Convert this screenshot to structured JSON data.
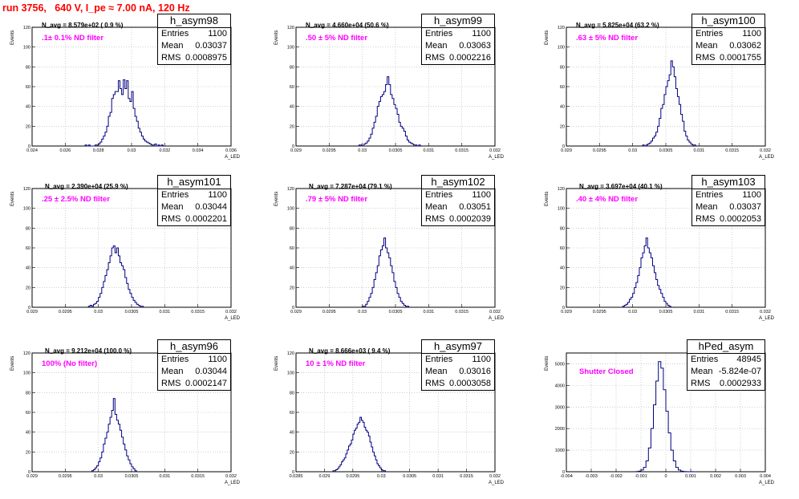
{
  "title": "run 3756,   640 V, I_pe ≈ 7.00 nA, 120 Hz",
  "chart_data": [
    {
      "type": "histogram",
      "name": "h_asym98",
      "navg": "N_avg = 8.579e+02 ( 0.9 %)",
      "filter": ".1± 0.1% ND filter",
      "entries": "1100",
      "mean": "0.03037",
      "rms": "0.0008975",
      "xlim": [
        0.024,
        0.036
      ],
      "xticks": [
        "0.024",
        "0.026",
        "0.028",
        "0.03",
        "0.032",
        "0.034",
        "0.036"
      ],
      "ylim": [
        0,
        120
      ],
      "yticks": [
        "0",
        "20",
        "40",
        "60",
        "80",
        "100",
        "120"
      ],
      "xlabel": "A_LED",
      "ylabel": "Events",
      "bin_lo": 0.0272,
      "bin_w": 0.0001,
      "values": [
        1,
        0,
        1,
        0,
        0,
        0,
        1,
        1,
        2,
        4,
        7,
        10,
        14,
        20,
        30,
        34,
        48,
        52,
        55,
        55,
        66,
        58,
        52,
        67,
        58,
        66,
        48,
        45,
        55,
        38,
        30,
        25,
        18,
        14,
        10,
        7,
        5,
        4,
        3,
        2,
        1,
        1,
        2,
        0,
        1,
        0,
        1
      ]
    },
    {
      "type": "histogram",
      "name": "h_asym99",
      "navg": "N_avg = 4.660e+04 (50.6 %)",
      "filter": ".50 ± 5% ND filter",
      "entries": "1100",
      "mean": "0.03063",
      "rms": "0.0002216",
      "xlim": [
        0.029,
        0.032
      ],
      "xticks": [
        "0.029",
        "0.0295",
        "0.03",
        "0.0305",
        "0.031",
        "0.0315",
        "0.032"
      ],
      "ylim": [
        0,
        120
      ],
      "yticks": [
        "0",
        "20",
        "40",
        "60",
        "80",
        "100",
        "120"
      ],
      "xlabel": "A_LED",
      "ylabel": "Events",
      "bin_lo": 0.02995,
      "bin_w": 2.5e-05,
      "values": [
        1,
        1,
        0,
        2,
        3,
        5,
        8,
        12,
        18,
        24,
        30,
        40,
        45,
        50,
        52,
        55,
        62,
        70,
        62,
        52,
        48,
        42,
        38,
        32,
        24,
        20,
        18,
        15,
        10,
        6,
        4,
        3,
        2,
        1,
        1,
        0,
        1
      ]
    },
    {
      "type": "histogram",
      "name": "h_asym100",
      "navg": "N_avg = 5.825e+04 (63.2 %)",
      "filter": ".63 ± 5% ND filter",
      "entries": "1100",
      "mean": "0.03062",
      "rms": "0.0001755",
      "xlim": [
        0.029,
        0.032
      ],
      "xticks": [
        "0.029",
        "0.0295",
        "0.03",
        "0.0305",
        "0.031",
        "0.0315",
        "0.032"
      ],
      "ylim": [
        0,
        120
      ],
      "yticks": [
        "0",
        "20",
        "40",
        "60",
        "80",
        "100",
        "120"
      ],
      "xlabel": "A_LED",
      "ylabel": "Events",
      "bin_lo": 0.03015,
      "bin_w": 2.5e-05,
      "values": [
        1,
        0,
        1,
        2,
        3,
        5,
        8,
        10,
        14,
        20,
        28,
        38,
        42,
        52,
        60,
        66,
        72,
        86,
        80,
        70,
        58,
        50,
        42,
        32,
        25,
        15,
        10,
        6,
        4,
        2,
        1,
        1
      ]
    },
    {
      "type": "histogram",
      "name": "h_asym101",
      "navg": "N_avg = 2.390e+04 (25.9 %)",
      "filter": ".25 ± 2.5% ND filter",
      "entries": "1100",
      "mean": "0.03044",
      "rms": "0.0002201",
      "xlim": [
        0.029,
        0.032
      ],
      "xticks": [
        "0.029",
        "0.0295",
        "0.03",
        "0.0305",
        "0.031",
        "0.0315",
        "0.032"
      ],
      "ylim": [
        0,
        120
      ],
      "yticks": [
        "0",
        "20",
        "40",
        "60",
        "80",
        "100",
        "120"
      ],
      "xlabel": "A_LED",
      "ylabel": "Events",
      "bin_lo": 0.02985,
      "bin_w": 2.5e-05,
      "values": [
        1,
        2,
        1,
        3,
        4,
        6,
        10,
        14,
        20,
        26,
        32,
        38,
        45,
        52,
        60,
        62,
        55,
        60,
        52,
        45,
        42,
        38,
        30,
        24,
        18,
        14,
        10,
        7,
        5,
        3,
        2,
        1,
        1
      ]
    },
    {
      "type": "histogram",
      "name": "h_asym102",
      "navg": "N_avg = 7.287e+04 (79.1 %)",
      "filter": ".79 ± 5% ND filter",
      "entries": "1100",
      "mean": "0.03051",
      "rms": "0.0002039",
      "xlim": [
        0.029,
        0.032
      ],
      "xticks": [
        "0.029",
        "0.0295",
        "0.03",
        "0.0305",
        "0.031",
        "0.0315",
        "0.032"
      ],
      "ylim": [
        0,
        120
      ],
      "yticks": [
        "0",
        "20",
        "40",
        "60",
        "80",
        "100",
        "120"
      ],
      "xlabel": "A_LED",
      "ylabel": "Events",
      "bin_lo": 0.03,
      "bin_w": 2.5e-05,
      "values": [
        1,
        1,
        3,
        6,
        10,
        14,
        20,
        28,
        35,
        42,
        52,
        58,
        62,
        70,
        60,
        55,
        50,
        42,
        35,
        26,
        20,
        14,
        10,
        6,
        4,
        2,
        1,
        1
      ]
    },
    {
      "type": "histogram",
      "name": "h_asym103",
      "navg": "N_avg = 3.697e+04 (40.1 %)",
      "filter": ".40 ± 4% ND filter",
      "entries": "1100",
      "mean": "0.03037",
      "rms": "0.0002053",
      "xlim": [
        0.029,
        0.032
      ],
      "xticks": [
        "0.029",
        "0.0295",
        "0.03",
        "0.0305",
        "0.031",
        "0.0315",
        "0.032"
      ],
      "ylim": [
        0,
        120
      ],
      "yticks": [
        "0",
        "20",
        "40",
        "60",
        "80",
        "100",
        "120"
      ],
      "xlabel": "A_LED",
      "ylabel": "Events",
      "bin_lo": 0.02985,
      "bin_w": 2.5e-05,
      "values": [
        1,
        2,
        3,
        5,
        8,
        10,
        14,
        20,
        25,
        32,
        40,
        50,
        55,
        62,
        70,
        60,
        55,
        50,
        42,
        35,
        28,
        22,
        18,
        14,
        10,
        6,
        4,
        2,
        1
      ]
    },
    {
      "type": "histogram",
      "name": "h_asym96",
      "navg": "N_avg = 9.212e+04 (100.0 %)",
      "filter": "100% (No filter)",
      "entries": "1100",
      "mean": "0.03044",
      "rms": "0.0002147",
      "xlim": [
        0.029,
        0.032
      ],
      "xticks": [
        "0.029",
        "0.0295",
        "0.03",
        "0.0305",
        "0.031",
        "0.0315",
        "0.032"
      ],
      "ylim": [
        0,
        120
      ],
      "yticks": [
        "0",
        "20",
        "40",
        "60",
        "80",
        "100",
        "120"
      ],
      "xlabel": "A_LED",
      "ylabel": "Events",
      "bin_lo": 0.0299,
      "bin_w": 2.5e-05,
      "values": [
        1,
        2,
        4,
        6,
        10,
        14,
        20,
        28,
        34,
        40,
        48,
        55,
        62,
        74,
        58,
        52,
        48,
        42,
        35,
        28,
        22,
        16,
        12,
        8,
        5,
        3,
        1
      ]
    },
    {
      "type": "histogram",
      "name": "h_asym97",
      "navg": "N_avg = 8.666e+03 ( 9.4 %)",
      "filter": "10 ± 1% ND filter",
      "entries": "1100",
      "mean": "0.03016",
      "rms": "0.0003058",
      "xlim": [
        0.0285,
        0.032
      ],
      "xticks": [
        "0.0285",
        "0.029",
        "0.0295",
        "0.03",
        "0.0305",
        "0.031",
        "0.0315",
        "0.032"
      ],
      "ylim": [
        0,
        120
      ],
      "yticks": [
        "0",
        "20",
        "40",
        "60",
        "80",
        "100",
        "120"
      ],
      "xlabel": "A_LED",
      "ylabel": "Events",
      "bin_lo": 0.02915,
      "bin_w": 2.5e-05,
      "values": [
        1,
        1,
        2,
        3,
        5,
        7,
        10,
        12,
        14,
        18,
        22,
        26,
        28,
        32,
        38,
        42,
        44,
        48,
        50,
        55,
        52,
        50,
        45,
        42,
        40,
        36,
        30,
        25,
        20,
        16,
        12,
        8,
        6,
        4,
        2,
        1,
        1
      ]
    },
    {
      "type": "histogram",
      "name": "hPed_asym",
      "navg": "",
      "filter": "Shutter Closed",
      "entries": "48945",
      "mean": "-5.824e-07",
      "rms": "0.0002933",
      "xlim": [
        -0.004,
        0.004
      ],
      "xticks": [
        "-0.004",
        "-0.003",
        "-0.002",
        "-0.001",
        "0",
        "0.001",
        "0.002",
        "0.003",
        "0.004"
      ],
      "ylim": [
        0,
        5500
      ],
      "yticks": [
        "0",
        "1000",
        "2000",
        "3000",
        "4000",
        "5000"
      ],
      "xlabel": "A_LED",
      "ylabel": "Events",
      "bin_lo": -0.0012,
      "bin_w": 0.0001,
      "values": [
        10,
        30,
        80,
        200,
        500,
        1100,
        2000,
        3100,
        4200,
        5100,
        4800,
        3800,
        2800,
        1800,
        1000,
        500,
        200,
        80,
        30,
        10,
        5,
        0,
        5,
        2
      ]
    }
  ]
}
